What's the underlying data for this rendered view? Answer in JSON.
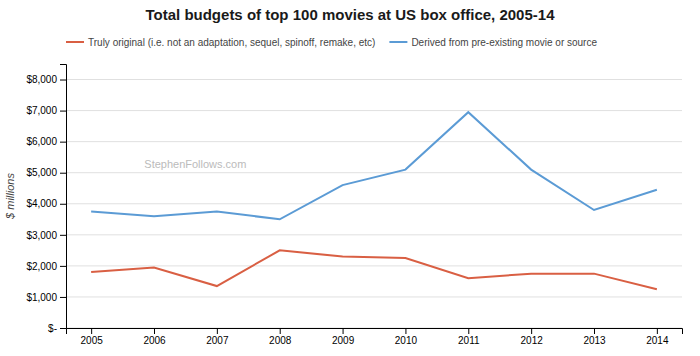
{
  "chart_data": {
    "type": "line",
    "title": "Total budgets of top 100 movies at US box office, 2005-14",
    "ylabel": "$ millions",
    "annotations": [
      "StephenFollows.com"
    ],
    "x": [
      2005,
      2006,
      2007,
      2008,
      2009,
      2010,
      2011,
      2012,
      2013,
      2014
    ],
    "series": [
      {
        "name": "Truly original (i.e. not an adaptation, sequel, spinoff, remake, etc)",
        "color": "#d95f43",
        "values": [
          1800,
          1950,
          1350,
          2500,
          2300,
          2250,
          1600,
          1750,
          1750,
          1250
        ]
      },
      {
        "name": "Derived from pre-existing movie or source",
        "color": "#5b9bd5",
        "values": [
          3750,
          3600,
          3750,
          3500,
          4600,
          5100,
          6950,
          5100,
          3800,
          4450
        ]
      }
    ],
    "xlim": [
      2004.6,
      2014.4
    ],
    "xticks": [
      2005,
      2006,
      2007,
      2008,
      2009,
      2010,
      2011,
      2012,
      2013,
      2014
    ],
    "ylim": [
      0,
      8500
    ],
    "yticks": [
      {
        "value": 0,
        "label": "$-"
      },
      {
        "value": 1000,
        "label": "$1,000"
      },
      {
        "value": 2000,
        "label": "$2,000"
      },
      {
        "value": 3000,
        "label": "$3,000"
      },
      {
        "value": 4000,
        "label": "$4,000"
      },
      {
        "value": 5000,
        "label": "$5,000"
      },
      {
        "value": 6000,
        "label": "$6,000"
      },
      {
        "value": 7000,
        "label": "$7,000"
      },
      {
        "value": 8000,
        "label": "$8,000"
      }
    ],
    "grid": true,
    "legend": "upper left"
  }
}
